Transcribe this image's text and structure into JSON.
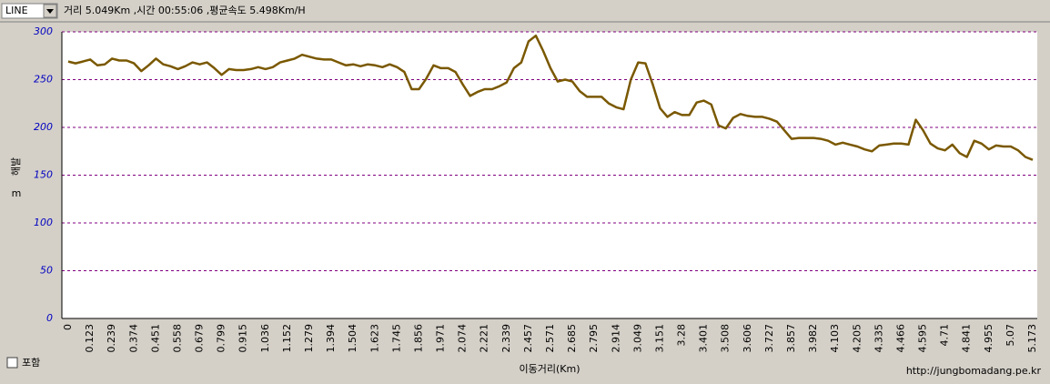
{
  "toolbar": {
    "dropdown": "LINE",
    "info": "거리 5.049Km ,시간 00:55:06 ,평균속도 5.498Km/H"
  },
  "checkbox_label": "포함",
  "footer_url": "http://jungbomadang.pe.kr",
  "chart_data": {
    "type": "line",
    "x_label": "이동거리(Km)",
    "y_label": [
      "해발",
      "m"
    ],
    "color": "#7a5800",
    "grid": true,
    "ylim": [
      0,
      300
    ],
    "yticks": [
      0,
      50,
      100,
      150,
      200,
      250,
      300
    ],
    "categories": [
      "0",
      null,
      null,
      "0.123",
      null,
      null,
      "0.239",
      null,
      null,
      "0.374",
      null,
      null,
      "0.451",
      null,
      null,
      "0.558",
      null,
      null,
      "0.679",
      null,
      null,
      "0.799",
      null,
      null,
      "0.915",
      null,
      null,
      "1.036",
      null,
      null,
      "1.152",
      null,
      null,
      "1.279",
      null,
      null,
      "1.394",
      null,
      null,
      "1.504",
      null,
      null,
      "1.623",
      null,
      null,
      "1.745",
      null,
      null,
      "1.856",
      null,
      null,
      "1.971",
      null,
      null,
      "2.074",
      null,
      null,
      "2.221",
      null,
      null,
      "2.339",
      null,
      null,
      "2.457",
      null,
      null,
      "2.571",
      null,
      null,
      "2.685",
      null,
      null,
      "2.795",
      null,
      null,
      "2.914",
      null,
      null,
      "3.049",
      null,
      null,
      "3.151",
      null,
      null,
      "3.28",
      null,
      null,
      "3.401",
      null,
      null,
      "3.508",
      null,
      null,
      "3.606",
      null,
      null,
      "3.727",
      null,
      null,
      "3.857",
      null,
      null,
      "3.982",
      null,
      null,
      "4.103",
      null,
      null,
      "4.205",
      null,
      null,
      "4.335",
      null,
      null,
      "4.466",
      null,
      null,
      "4.595",
      null,
      null,
      "4.71",
      null,
      null,
      "4.841",
      null,
      null,
      "4.955",
      null,
      null,
      "5.07",
      null,
      null,
      "5.173"
    ],
    "values": [
      269,
      267,
      269,
      271,
      265,
      266,
      272,
      270,
      270,
      267,
      259,
      265,
      272,
      266,
      264,
      261,
      264,
      268,
      266,
      268,
      262,
      255,
      261,
      260,
      260,
      261,
      263,
      261,
      263,
      268,
      270,
      272,
      276,
      274,
      272,
      271,
      271,
      268,
      265,
      266,
      264,
      266,
      265,
      263,
      266,
      263,
      258,
      240,
      240,
      251,
      265,
      262,
      262,
      258,
      245,
      233,
      237,
      240,
      240,
      243,
      247,
      262,
      268,
      290,
      296,
      280,
      262,
      248,
      250,
      248,
      238,
      232,
      232,
      232,
      225,
      221,
      219,
      250,
      268,
      267,
      245,
      220,
      211,
      216,
      213,
      213,
      226,
      228,
      224,
      202,
      199,
      210,
      214,
      212,
      211,
      211,
      209,
      206,
      197,
      188,
      189,
      189,
      189,
      188,
      186,
      182,
      184,
      182,
      180,
      177,
      175,
      181,
      182,
      183,
      183,
      182,
      208,
      197,
      183,
      178,
      176,
      182,
      173,
      169,
      186,
      183,
      177,
      181,
      180,
      180,
      176,
      169,
      166
    ]
  }
}
